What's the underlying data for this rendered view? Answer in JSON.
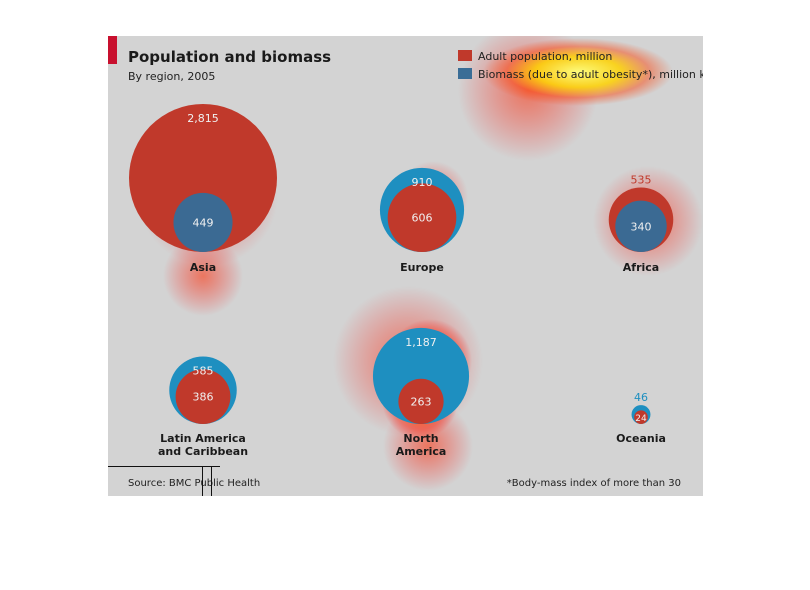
{
  "header": {
    "title": "Population and biomass",
    "subtitle": "By region, 2005"
  },
  "legend": {
    "population": "Adult population, million",
    "biomass": "Biomass (due to adult obesity*), million kg"
  },
  "footer": {
    "source": "Source: BMC Public Health",
    "footnote": "*Body-mass index of more than 30"
  },
  "colors": {
    "population": "#c0392b",
    "biomass": "#1e8fc0",
    "panel": "#d3d3d3"
  },
  "chart_data": {
    "type": "bubble",
    "title": "Population and biomass",
    "subtitle": "By region, 2005",
    "series": [
      {
        "name": "Adult population, million",
        "color": "#c0392b"
      },
      {
        "name": "Biomass (due to adult obesity*), million kg",
        "color": "#1e8fc0"
      }
    ],
    "regions": [
      {
        "name": "Asia",
        "population": 2815,
        "biomass": 449
      },
      {
        "name": "Europe",
        "population": 606,
        "biomass": 910
      },
      {
        "name": "Africa",
        "population": 535,
        "biomass": 340
      },
      {
        "name": "Latin America and Caribbean",
        "population": 386,
        "biomass": 585
      },
      {
        "name": "North America",
        "population": 263,
        "biomass": 1187
      },
      {
        "name": "Oceania",
        "population": 24,
        "biomass": 46
      }
    ],
    "value_labels": {
      "Asia": [
        "2,815",
        "449"
      ],
      "Europe": [
        "910",
        "606"
      ],
      "Africa": [
        "535",
        "340"
      ],
      "Latin America and Caribbean": [
        "585",
        "386"
      ],
      "North America": [
        "1,187",
        "263"
      ],
      "Oceania": [
        "46",
        "24"
      ]
    }
  }
}
